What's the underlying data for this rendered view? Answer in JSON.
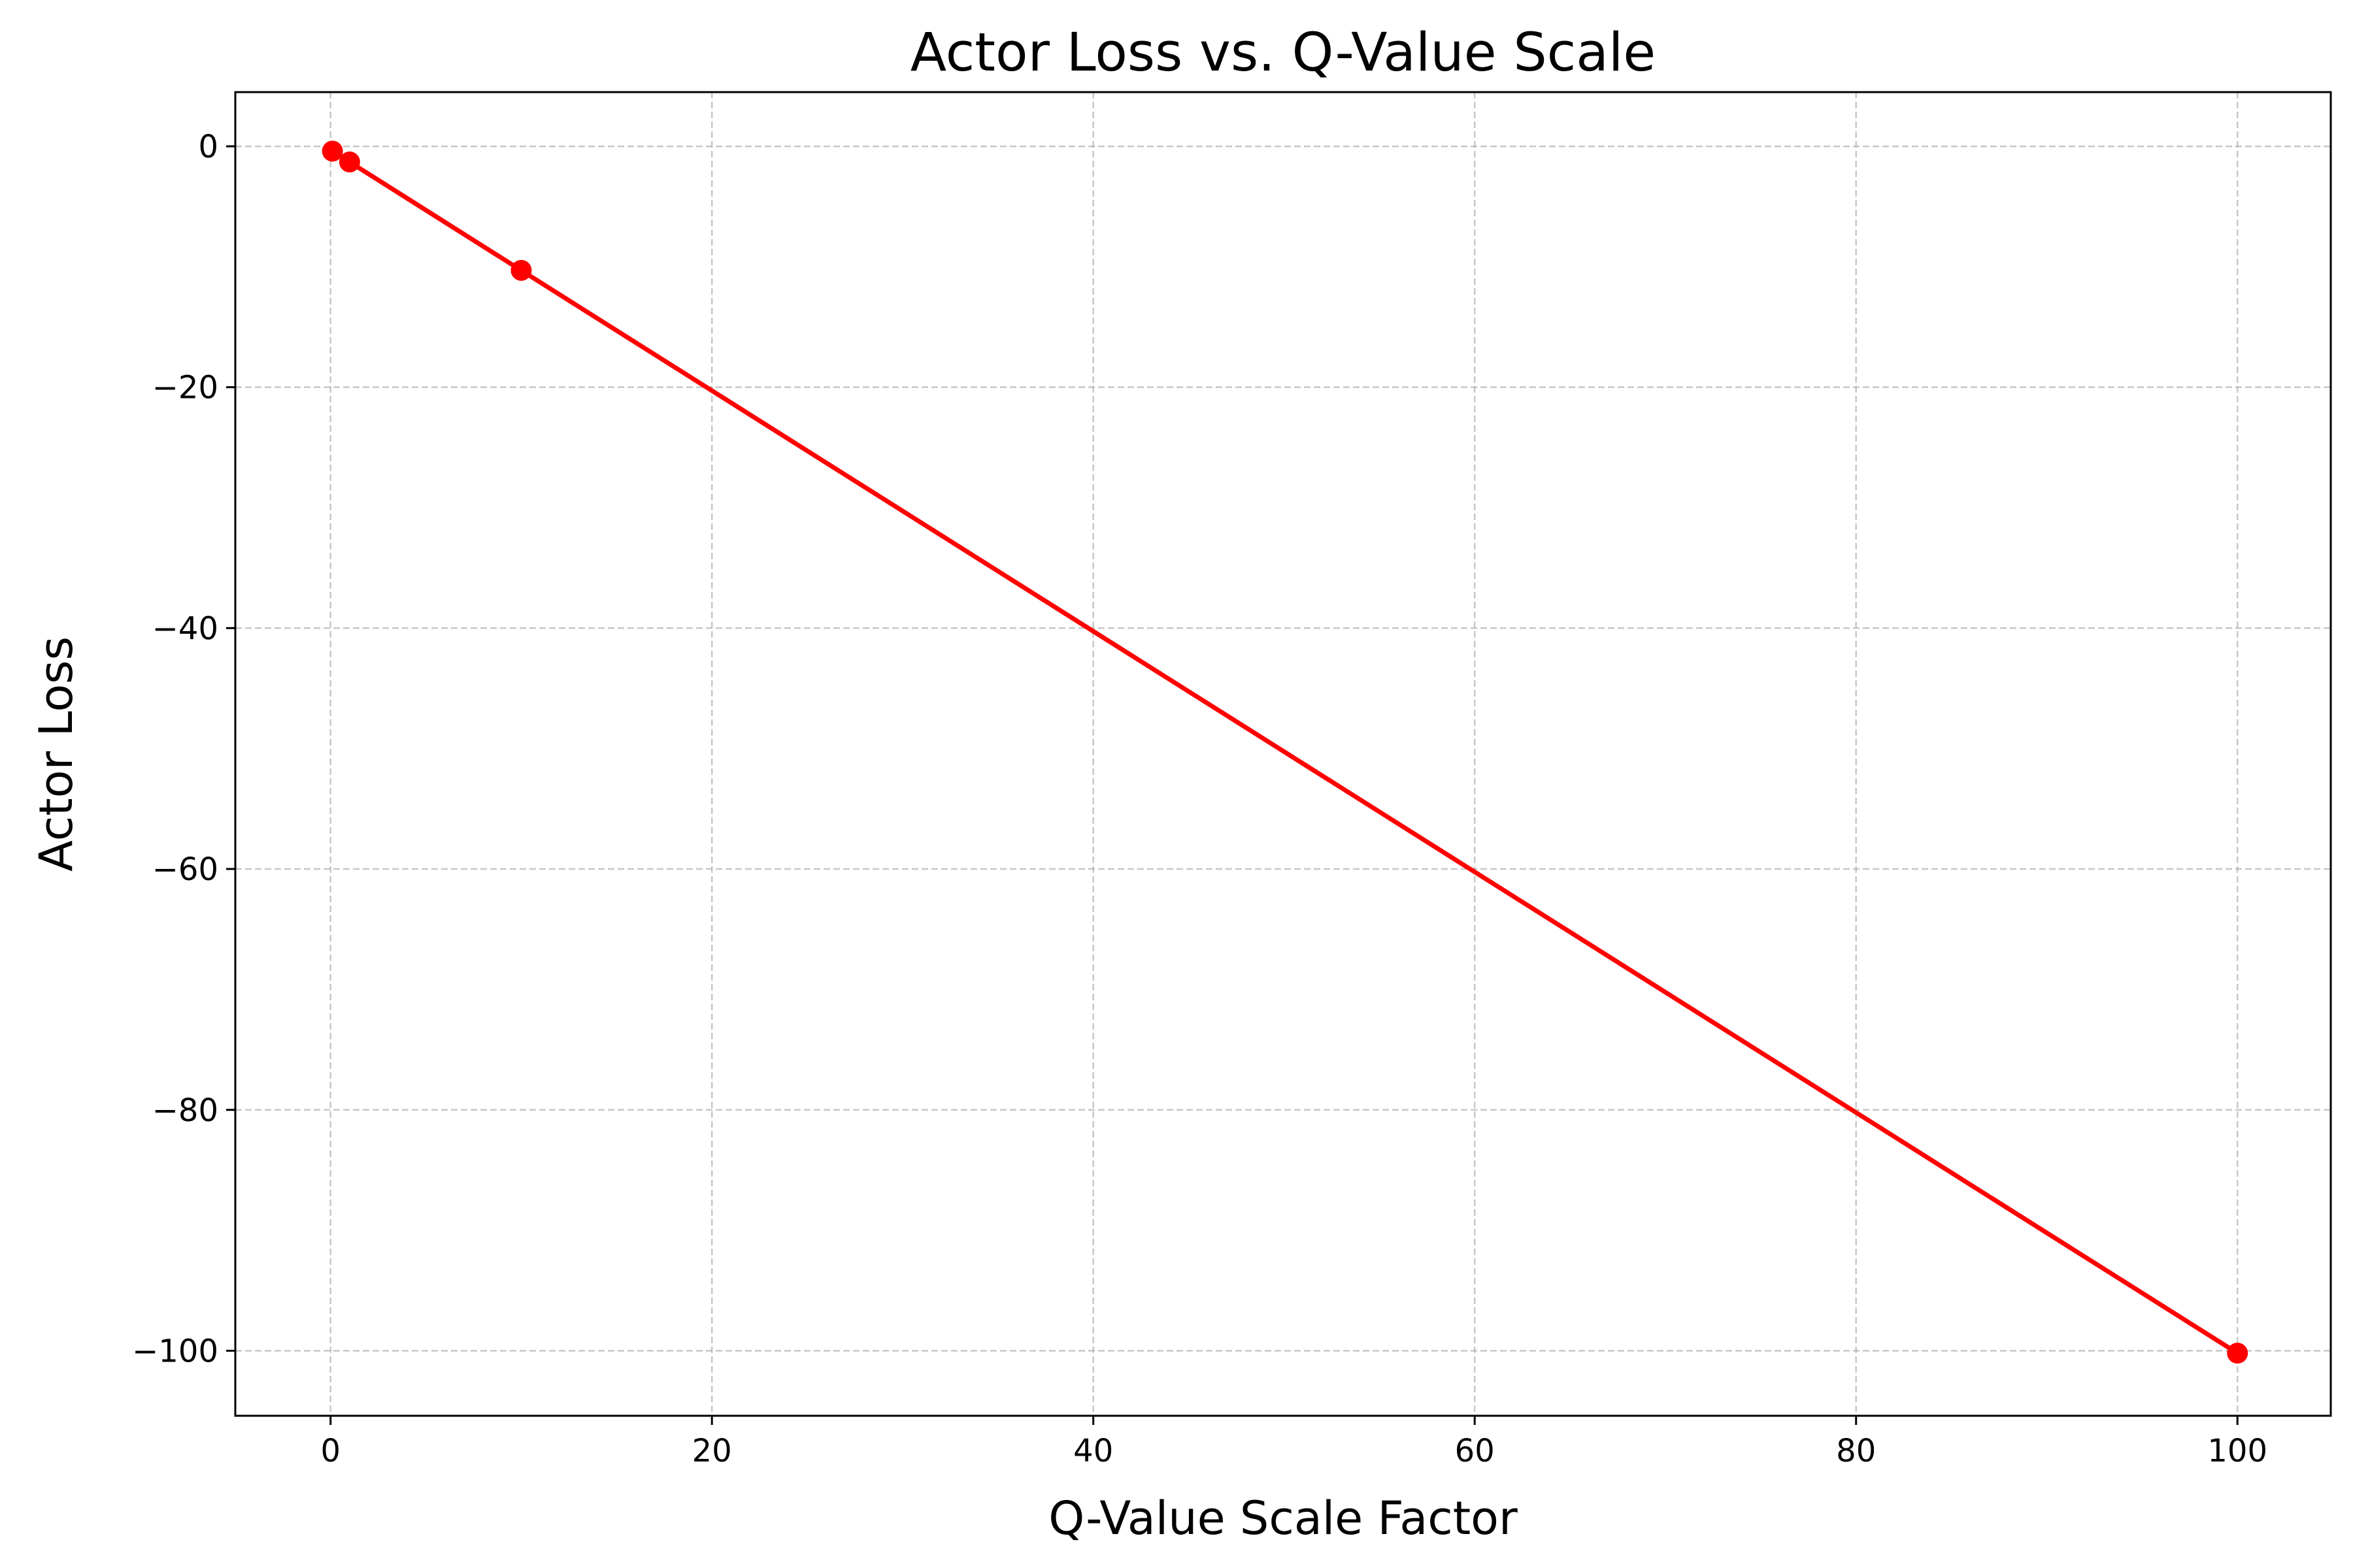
{
  "chart_data": {
    "type": "line",
    "title": "Actor Loss vs. Q-Value Scale",
    "xlabel": "Q-Value Scale Factor",
    "ylabel": "Actor Loss",
    "xlim": [
      -4.995,
      104.895
    ],
    "ylim": [
      -105.4,
      4.5
    ],
    "x_ticks": [
      0,
      20,
      40,
      60,
      80,
      100
    ],
    "y_ticks": [
      0,
      -20,
      -40,
      -60,
      -80,
      -100
    ],
    "x_tick_labels": [
      "0",
      "20",
      "40",
      "60",
      "80",
      "100"
    ],
    "y_tick_labels": [
      "0",
      "−20",
      "−40",
      "−60",
      "−80",
      "−100"
    ],
    "grid": true,
    "series": [
      {
        "x": [
          0.1,
          1,
          10,
          100
        ],
        "values": [
          -0.4,
          -1.3,
          -10.3,
          -100.2
        ],
        "color": "#ff0000",
        "marker": "circle"
      }
    ]
  }
}
